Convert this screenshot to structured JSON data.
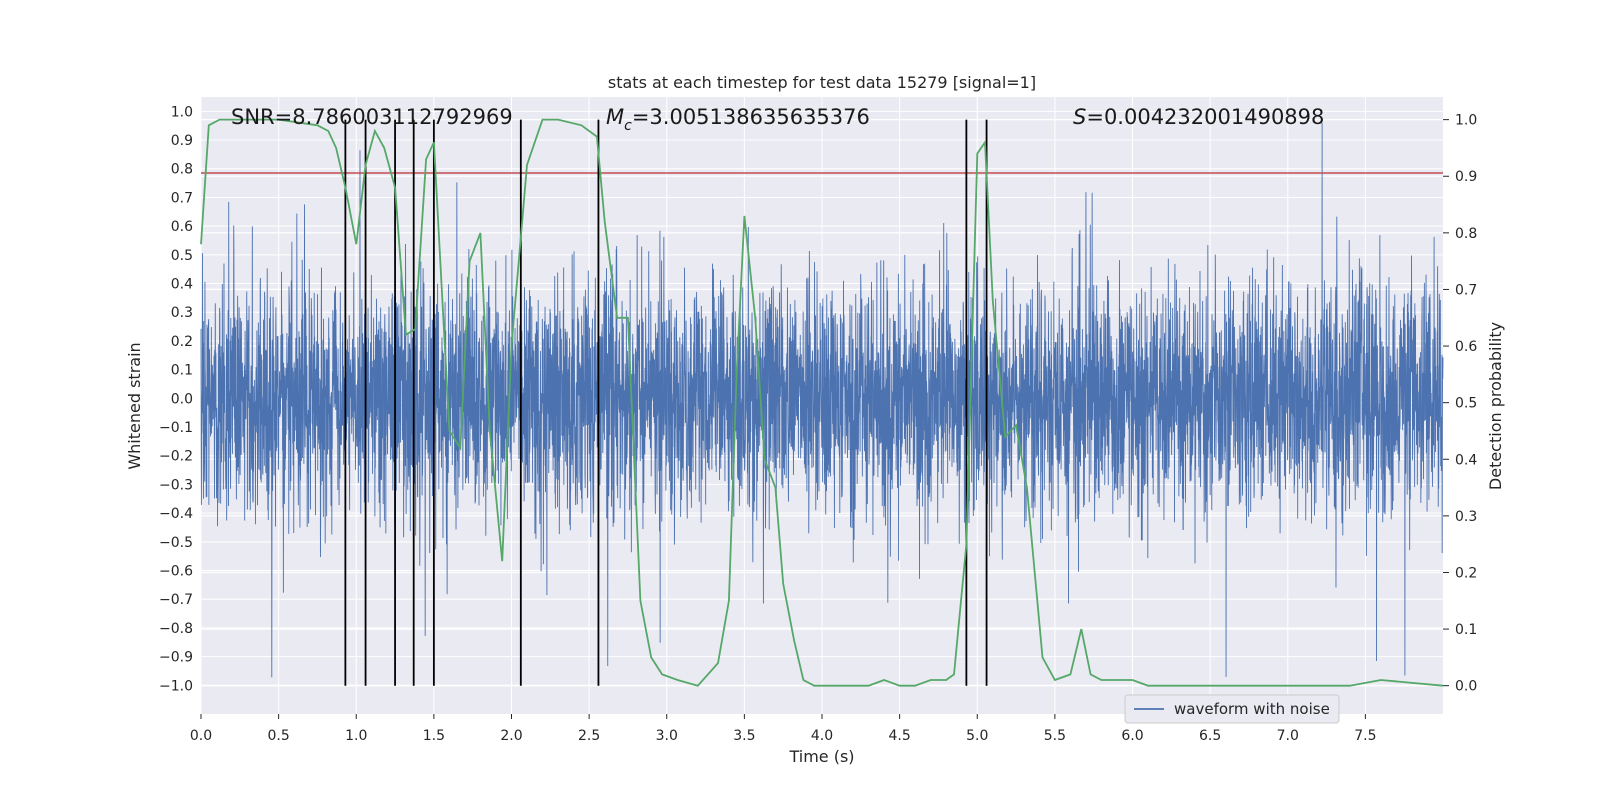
{
  "chart_data": {
    "type": "line",
    "title": "stats at each timestep for test data 15279 [signal=1]",
    "xlabel": "Time (s)",
    "ylabel_left": "Whitened strain",
    "ylabel_right": "Detection probability",
    "xlim": [
      0,
      8
    ],
    "ylim_left": [
      -1.1,
      1.05
    ],
    "ylim_right": [
      -0.05,
      1.04
    ],
    "x_ticks": [
      "0.0",
      "0.5",
      "1.0",
      "1.5",
      "2.0",
      "2.5",
      "3.0",
      "3.5",
      "4.0",
      "4.5",
      "5.0",
      "5.5",
      "6.0",
      "6.5",
      "7.0",
      "7.5"
    ],
    "y_left_ticks": [
      "1.0",
      "0.9",
      "0.8",
      "0.7",
      "0.6",
      "0.5",
      "0.4",
      "0.3",
      "0.2",
      "0.1",
      "0.0",
      "−0.1",
      "−0.2",
      "−0.3",
      "−0.4",
      "−0.5",
      "−0.6",
      "−0.7",
      "−0.8",
      "−0.9",
      "−1.0"
    ],
    "y_right_ticks": [
      "1.0",
      "0.9",
      "0.8",
      "0.7",
      "0.6",
      "0.5",
      "0.4",
      "0.3",
      "0.2",
      "0.1",
      "0.0"
    ],
    "annotations": {
      "snr": "SNR=8.786003112792969",
      "mc_symbol": "M",
      "mc_sub": "c",
      "mc_value": "=3.005138635635376",
      "s_symbol": "S",
      "s_value": "=0.004232001490898"
    },
    "legend": {
      "label": "waveform with noise",
      "position": "lower-right"
    },
    "grid": true,
    "colors": {
      "waveform": "#4c72b0",
      "probability": "#55a868",
      "threshold": "#c44e52",
      "markers": "#000000",
      "axes_bg": "#eaeaf2",
      "grid": "#ffffff"
    },
    "series": [
      {
        "name": "waveform with noise",
        "axis": "left",
        "description_values": {
          "typical_range": [
            -0.4,
            0.4
          ],
          "peak_max": 0.99,
          "peak_min": -0.99
        }
      },
      {
        "axis": "right",
        "x": [
          0.0,
          0.05,
          0.12,
          0.2,
          0.5,
          0.75,
          0.82,
          0.87,
          0.93,
          1.0,
          1.06,
          1.12,
          1.18,
          1.25,
          1.32,
          1.38,
          1.45,
          1.5,
          1.6,
          1.67,
          1.73,
          1.8,
          1.86,
          1.94,
          2.0,
          2.1,
          2.2,
          2.3,
          2.45,
          2.55,
          2.6,
          2.68,
          2.75,
          2.83,
          2.9,
          2.97,
          3.07,
          3.2,
          3.33,
          3.4,
          3.45,
          3.5,
          3.57,
          3.63,
          3.7,
          3.75,
          3.82,
          3.88,
          3.95,
          4.1,
          4.3,
          4.4,
          4.5,
          4.6,
          4.7,
          4.8,
          4.85,
          4.93,
          5.0,
          5.05,
          5.1,
          5.18,
          5.25,
          5.32,
          5.42,
          5.5,
          5.6,
          5.67,
          5.73,
          5.8,
          5.9,
          6.0,
          6.1,
          6.5,
          7.0,
          7.4,
          7.6,
          8.0
        ],
        "y": [
          0.78,
          0.99,
          1.0,
          1.0,
          1.0,
          0.99,
          0.98,
          0.95,
          0.88,
          0.78,
          0.92,
          0.98,
          0.95,
          0.88,
          0.62,
          0.63,
          0.93,
          0.96,
          0.45,
          0.42,
          0.75,
          0.8,
          0.45,
          0.22,
          0.6,
          0.92,
          1.0,
          1.0,
          0.99,
          0.97,
          0.82,
          0.65,
          0.65,
          0.15,
          0.05,
          0.02,
          0.01,
          0.0,
          0.04,
          0.15,
          0.55,
          0.83,
          0.65,
          0.4,
          0.35,
          0.18,
          0.08,
          0.01,
          0.0,
          0.0,
          0.0,
          0.01,
          0.0,
          0.0,
          0.01,
          0.01,
          0.02,
          0.25,
          0.94,
          0.96,
          0.68,
          0.44,
          0.46,
          0.35,
          0.05,
          0.01,
          0.02,
          0.1,
          0.02,
          0.01,
          0.01,
          0.01,
          0.0,
          0.0,
          0.0,
          0.0,
          0.01,
          0.0
        ]
      }
    ],
    "threshold": {
      "axis": "left",
      "value": 0.785
    },
    "vertical_markers_x": [
      0.93,
      1.06,
      1.25,
      1.37,
      1.5,
      2.06,
      2.56,
      4.93,
      5.06
    ]
  }
}
